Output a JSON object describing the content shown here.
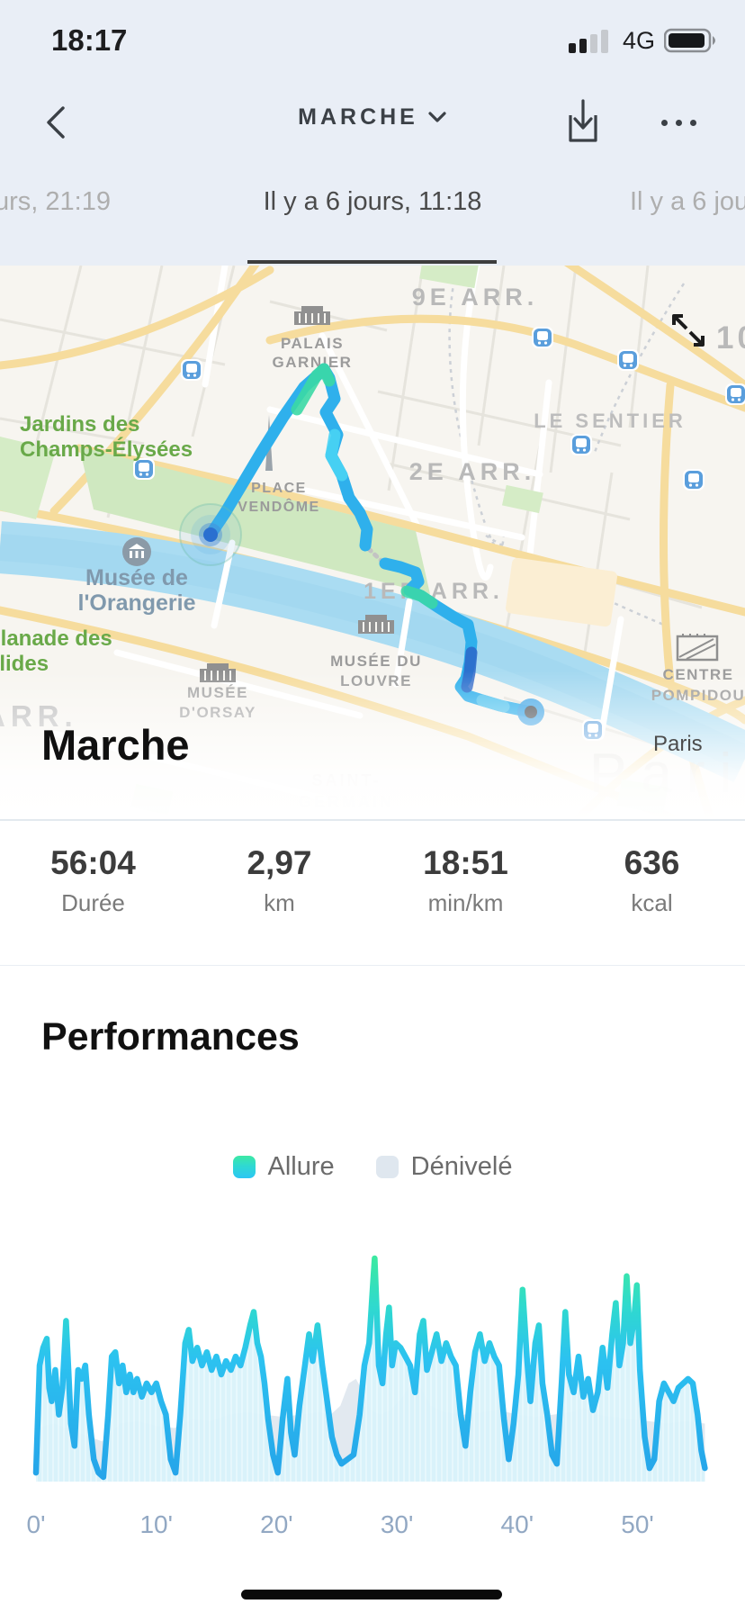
{
  "status_bar": {
    "time": "18:17",
    "network": "4G"
  },
  "nav": {
    "title": "MARCHE"
  },
  "date_nav": {
    "prev": "urs, 21:19",
    "current": "Il y a 6 jours, 11:18",
    "next": "Il y a 6 jou"
  },
  "map": {
    "activity_title": "Marche",
    "city_label": "Paris",
    "watermark": "Paris",
    "labels": {
      "arr_9e": "9E ARR.",
      "arr_10": "10",
      "le_sentier": "LE SENTIER",
      "arr_2e": "2E ARR.",
      "arr_1er": "1ER ARR.",
      "arr_left": "ARR.",
      "palais_garnier_1": "PALAIS",
      "palais_garnier_2": "GARNIER",
      "place_vendome_1": "PLACE",
      "place_vendome_2": "VENDÔME",
      "jardins_1": "Jardins des",
      "jardins_2": "Champs-Élysées",
      "orangerie_1": "Musée de",
      "orangerie_2": "l'Orangerie",
      "esplanade_1": "planade des",
      "esplanade_2": "alides",
      "orsay_1": "MUSÉE",
      "orsay_2": "D'ORSAY",
      "louvre_1": "MUSÉE DU",
      "louvre_2": "LOUVRE",
      "pompidou_1": "CENTRE",
      "pompidou_2": "POMPIDOU",
      "saint_germain_1": "SAINT-",
      "saint_germain_2": "GERMAIN"
    }
  },
  "stats": [
    {
      "value": "56:04",
      "label": "Durée"
    },
    {
      "value": "2,97",
      "label": "km"
    },
    {
      "value": "18:51",
      "label": "min/km"
    },
    {
      "value": "636",
      "label": "kcal"
    }
  ],
  "performance": {
    "title": "Performances",
    "legend": [
      {
        "label": "Allure",
        "color_top": "#3ee9a4",
        "color_bottom": "#2cc6f4"
      },
      {
        "label": "Dénivelé",
        "color": "#dfe7ef"
      }
    ]
  },
  "chart_data": {
    "type": "line",
    "title": "Performances",
    "x_unit": "minutes",
    "x_range": [
      0,
      55.6
    ],
    "x_tick_labels": [
      "0'",
      "10'",
      "20'",
      "30'",
      "40'",
      "50'"
    ],
    "x_tick_values": [
      0,
      10,
      20,
      30,
      40,
      50
    ],
    "y_axis": "hidden (values normalized 0-1 of plot height)",
    "legend_position": "top-center",
    "grid": false,
    "series": [
      {
        "name": "Allure",
        "style": "jagged line + light cyan area, green-to-blue vertical gradient stroke",
        "points": [
          [
            0,
            0.04
          ],
          [
            0.3,
            0.52
          ],
          [
            0.6,
            0.6
          ],
          [
            0.9,
            0.64
          ],
          [
            1.1,
            0.42
          ],
          [
            1.3,
            0.36
          ],
          [
            1.6,
            0.5
          ],
          [
            1.9,
            0.3
          ],
          [
            2.2,
            0.42
          ],
          [
            2.5,
            0.72
          ],
          [
            2.7,
            0.5
          ],
          [
            2.9,
            0.26
          ],
          [
            3.2,
            0.16
          ],
          [
            3.5,
            0.5
          ],
          [
            3.8,
            0.46
          ],
          [
            4.1,
            0.52
          ],
          [
            4.4,
            0.3
          ],
          [
            4.8,
            0.1
          ],
          [
            5.2,
            0.04
          ],
          [
            5.6,
            0.02
          ],
          [
            6,
            0.3
          ],
          [
            6.3,
            0.56
          ],
          [
            6.6,
            0.58
          ],
          [
            6.9,
            0.44
          ],
          [
            7.2,
            0.52
          ],
          [
            7.5,
            0.4
          ],
          [
            7.8,
            0.48
          ],
          [
            8.1,
            0.4
          ],
          [
            8.4,
            0.46
          ],
          [
            8.8,
            0.38
          ],
          [
            9.2,
            0.44
          ],
          [
            9.6,
            0.4
          ],
          [
            10,
            0.44
          ],
          [
            10.4,
            0.36
          ],
          [
            10.8,
            0.3
          ],
          [
            11.2,
            0.1
          ],
          [
            11.6,
            0.04
          ],
          [
            12,
            0.3
          ],
          [
            12.4,
            0.62
          ],
          [
            12.7,
            0.68
          ],
          [
            13,
            0.54
          ],
          [
            13.4,
            0.6
          ],
          [
            13.8,
            0.52
          ],
          [
            14.2,
            0.58
          ],
          [
            14.6,
            0.5
          ],
          [
            15,
            0.56
          ],
          [
            15.4,
            0.48
          ],
          [
            15.8,
            0.54
          ],
          [
            16.2,
            0.5
          ],
          [
            16.6,
            0.56
          ],
          [
            17,
            0.52
          ],
          [
            17.4,
            0.6
          ],
          [
            17.8,
            0.7
          ],
          [
            18.1,
            0.76
          ],
          [
            18.4,
            0.62
          ],
          [
            18.7,
            0.56
          ],
          [
            19,
            0.44
          ],
          [
            19.3,
            0.28
          ],
          [
            19.7,
            0.12
          ],
          [
            20.1,
            0.04
          ],
          [
            20.5,
            0.28
          ],
          [
            20.9,
            0.46
          ],
          [
            21.2,
            0.22
          ],
          [
            21.5,
            0.12
          ],
          [
            21.9,
            0.34
          ],
          [
            22.3,
            0.5
          ],
          [
            22.7,
            0.66
          ],
          [
            23,
            0.54
          ],
          [
            23.4,
            0.7
          ],
          [
            23.8,
            0.52
          ],
          [
            24.2,
            0.36
          ],
          [
            24.6,
            0.2
          ],
          [
            25,
            0.12
          ],
          [
            25.4,
            0.08
          ],
          [
            25.9,
            0.1
          ],
          [
            26.4,
            0.12
          ],
          [
            26.9,
            0.3
          ],
          [
            27.3,
            0.52
          ],
          [
            27.7,
            0.62
          ],
          [
            28,
            0.88
          ],
          [
            28.15,
            1
          ],
          [
            28.3,
            0.8
          ],
          [
            28.5,
            0.52
          ],
          [
            28.8,
            0.44
          ],
          [
            29.1,
            0.66
          ],
          [
            29.35,
            0.78
          ],
          [
            29.6,
            0.52
          ],
          [
            29.9,
            0.62
          ],
          [
            30.3,
            0.6
          ],
          [
            30.7,
            0.56
          ],
          [
            31.1,
            0.52
          ],
          [
            31.5,
            0.4
          ],
          [
            31.9,
            0.66
          ],
          [
            32.2,
            0.72
          ],
          [
            32.5,
            0.5
          ],
          [
            32.9,
            0.58
          ],
          [
            33.3,
            0.66
          ],
          [
            33.7,
            0.54
          ],
          [
            34.1,
            0.62
          ],
          [
            34.5,
            0.56
          ],
          [
            34.9,
            0.52
          ],
          [
            35.3,
            0.3
          ],
          [
            35.7,
            0.16
          ],
          [
            36.1,
            0.4
          ],
          [
            36.5,
            0.58
          ],
          [
            36.9,
            0.66
          ],
          [
            37.3,
            0.54
          ],
          [
            37.7,
            0.62
          ],
          [
            38.1,
            0.56
          ],
          [
            38.5,
            0.52
          ],
          [
            38.9,
            0.28
          ],
          [
            39.3,
            0.1
          ],
          [
            39.7,
            0.26
          ],
          [
            40.1,
            0.48
          ],
          [
            40.45,
            0.86
          ],
          [
            40.8,
            0.56
          ],
          [
            41.1,
            0.36
          ],
          [
            41.5,
            0.62
          ],
          [
            41.8,
            0.7
          ],
          [
            42.1,
            0.44
          ],
          [
            42.5,
            0.3
          ],
          [
            42.9,
            0.12
          ],
          [
            43.3,
            0.08
          ],
          [
            43.7,
            0.45
          ],
          [
            44,
            0.76
          ],
          [
            44.3,
            0.48
          ],
          [
            44.7,
            0.4
          ],
          [
            45.1,
            0.56
          ],
          [
            45.5,
            0.38
          ],
          [
            45.9,
            0.46
          ],
          [
            46.3,
            0.32
          ],
          [
            46.7,
            0.4
          ],
          [
            47.1,
            0.6
          ],
          [
            47.5,
            0.42
          ],
          [
            47.9,
            0.66
          ],
          [
            48.2,
            0.8
          ],
          [
            48.5,
            0.52
          ],
          [
            48.8,
            0.62
          ],
          [
            49.1,
            0.92
          ],
          [
            49.4,
            0.62
          ],
          [
            49.7,
            0.72
          ],
          [
            49.95,
            0.88
          ],
          [
            50.2,
            0.5
          ],
          [
            50.6,
            0.2
          ],
          [
            51,
            0.06
          ],
          [
            51.4,
            0.1
          ],
          [
            51.8,
            0.36
          ],
          [
            52.2,
            0.44
          ],
          [
            52.6,
            0.4
          ],
          [
            53,
            0.36
          ],
          [
            53.4,
            0.42
          ],
          [
            53.8,
            0.44
          ],
          [
            54.2,
            0.46
          ],
          [
            54.6,
            0.44
          ],
          [
            55,
            0.3
          ],
          [
            55.3,
            0.14
          ],
          [
            55.6,
            0.06
          ]
        ]
      },
      {
        "name": "Dénivelé",
        "style": "smooth light blue-gray filled area behind",
        "points": [
          [
            0,
            0.24
          ],
          [
            1.5,
            0.26
          ],
          [
            3,
            0.23
          ],
          [
            4.5,
            0.2
          ],
          [
            5.5,
            0.18
          ],
          [
            7,
            0.26
          ],
          [
            8.5,
            0.27
          ],
          [
            10,
            0.25
          ],
          [
            11.5,
            0.24
          ],
          [
            13,
            0.28
          ],
          [
            14.5,
            0.27
          ],
          [
            16,
            0.3
          ],
          [
            17.5,
            0.31
          ],
          [
            19,
            0.3
          ],
          [
            20.5,
            0.29
          ],
          [
            22,
            0.3
          ],
          [
            23.5,
            0.31
          ],
          [
            24.5,
            0.3
          ],
          [
            25.3,
            0.34
          ],
          [
            26,
            0.44
          ],
          [
            26.6,
            0.46
          ],
          [
            27.2,
            0.4
          ],
          [
            27.8,
            0.32
          ],
          [
            28.6,
            0.3
          ],
          [
            29.5,
            0.32
          ],
          [
            30.5,
            0.38
          ],
          [
            31.3,
            0.45
          ],
          [
            32,
            0.42
          ],
          [
            32.8,
            0.34
          ],
          [
            34,
            0.31
          ],
          [
            35.5,
            0.3
          ],
          [
            37,
            0.31
          ],
          [
            38.5,
            0.32
          ],
          [
            40,
            0.3
          ],
          [
            41.5,
            0.29
          ],
          [
            43,
            0.3
          ],
          [
            44.5,
            0.31
          ],
          [
            45.5,
            0.33
          ],
          [
            46.5,
            0.3
          ],
          [
            48,
            0.29
          ],
          [
            49.5,
            0.28
          ],
          [
            51,
            0.27
          ],
          [
            52.5,
            0.26
          ],
          [
            54,
            0.27
          ],
          [
            55.6,
            0.26
          ]
        ]
      }
    ]
  }
}
